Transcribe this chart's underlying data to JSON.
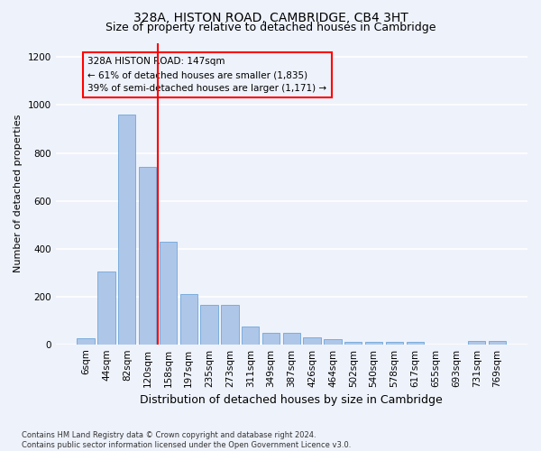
{
  "title": "328A, HISTON ROAD, CAMBRIDGE, CB4 3HT",
  "subtitle": "Size of property relative to detached houses in Cambridge",
  "xlabel": "Distribution of detached houses by size in Cambridge",
  "ylabel": "Number of detached properties",
  "categories": [
    "6sqm",
    "44sqm",
    "82sqm",
    "120sqm",
    "158sqm",
    "197sqm",
    "235sqm",
    "273sqm",
    "311sqm",
    "349sqm",
    "387sqm",
    "426sqm",
    "464sqm",
    "502sqm",
    "540sqm",
    "578sqm",
    "617sqm",
    "655sqm",
    "693sqm",
    "731sqm",
    "769sqm"
  ],
  "values": [
    25,
    305,
    960,
    740,
    430,
    210,
    165,
    165,
    75,
    48,
    48,
    30,
    20,
    10,
    10,
    10,
    10,
    0,
    0,
    12,
    15
  ],
  "bar_color": "#aec6e8",
  "bar_edge_color": "#5b9bd5",
  "vline_x_index": 3.5,
  "vline_color": "red",
  "annotation_text": "328A HISTON ROAD: 147sqm\n← 61% of detached houses are smaller (1,835)\n39% of semi-detached houses are larger (1,171) →",
  "footer_text": "Contains HM Land Registry data © Crown copyright and database right 2024.\nContains public sector information licensed under the Open Government Licence v3.0.",
  "ylim": [
    0,
    1260
  ],
  "yticks": [
    0,
    200,
    400,
    600,
    800,
    1000,
    1200
  ],
  "bg_color": "#eef2fb",
  "grid_color": "#ffffff",
  "title_fontsize": 10,
  "subtitle_fontsize": 9,
  "xlabel_fontsize": 9,
  "ylabel_fontsize": 8,
  "tick_fontsize": 7.5,
  "annotation_fontsize": 7.5,
  "footer_fontsize": 6
}
